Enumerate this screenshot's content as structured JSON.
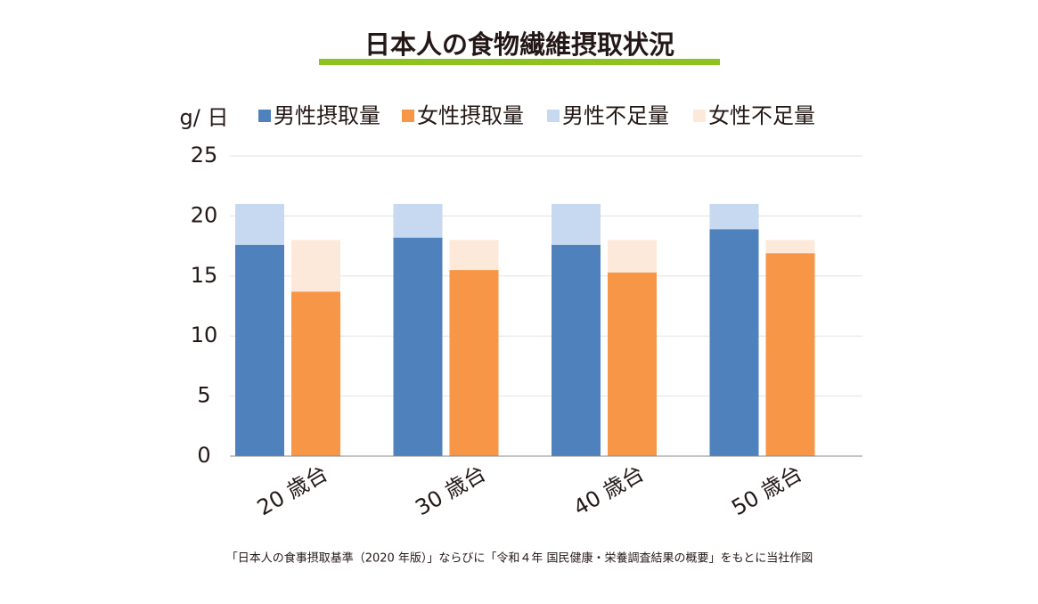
{
  "chart_data": {
    "type": "stacked_bar",
    "title": "日本人の食物繊維摂取状況",
    "y_label": "g/ 日",
    "note": "「日本人の食事摂取基準（2020 年版）」ならびに「令和４年 国民健康・栄養調査結果の概要」をもとに当社作図",
    "categories": [
      "20 歳台",
      "30 歳台",
      "40 歳台",
      "50 歳台"
    ],
    "series": [
      {
        "name": "男性摂取量",
        "color": "#4f81bd",
        "stack": 0,
        "values": [
          17.6,
          18.2,
          17.6,
          18.9
        ]
      },
      {
        "name": "女性摂取量",
        "color": "#f79646",
        "stack": 1,
        "values": [
          13.7,
          15.5,
          15.3,
          16.9
        ]
      },
      {
        "name": "男性不足量",
        "color": "#c6d9f0",
        "stack": 0,
        "values": [
          3.4,
          2.8,
          3.4,
          2.1
        ]
      },
      {
        "name": "女性不足量",
        "color": "#fde9d9",
        "stack": 1,
        "values": [
          4.3,
          2.5,
          2.7,
          1.1
        ]
      }
    ],
    "ylim": [
      0,
      25
    ],
    "yticks": [
      0,
      5,
      10,
      15,
      20,
      25
    ],
    "grid": true
  }
}
